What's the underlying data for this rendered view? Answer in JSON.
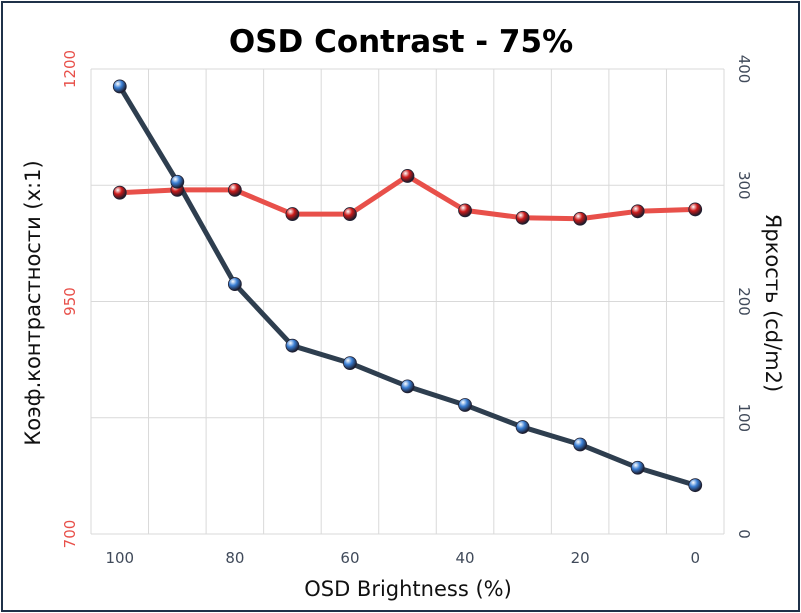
{
  "chart_data": {
    "type": "line",
    "title": "OSD Contrast - 75%",
    "xlabel": "OSD Brightness (%)",
    "ylabel_left": "Коэф.контрастности  (x:1)",
    "ylabel_right": "Яркость (cd/m2)",
    "x": [
      100,
      90,
      80,
      70,
      60,
      50,
      40,
      30,
      20,
      10,
      0
    ],
    "x_ticks": [
      "100",
      "80",
      "60",
      "40",
      "20",
      "0"
    ],
    "x_tick_values": [
      100,
      80,
      60,
      40,
      20,
      0
    ],
    "ylim_left": [
      700,
      1200
    ],
    "yticks_left": [
      "700",
      "950",
      "1200"
    ],
    "ytick_left_values": [
      700,
      950,
      1200
    ],
    "ylim_right": [
      0,
      400
    ],
    "yticks_right": [
      "0",
      "100",
      "200",
      "300",
      "400"
    ],
    "ytick_right_values": [
      0,
      100,
      200,
      300,
      400
    ],
    "grid": true,
    "series": [
      {
        "name": "Коэф.контрастности",
        "axis": "left",
        "color": "#e8504a",
        "marker_color": "#cc1a1a",
        "values": [
          1067,
          1070,
          1070,
          1044,
          1044,
          1085,
          1048,
          1040,
          1039,
          1047,
          1049
        ]
      },
      {
        "name": "Яркость",
        "axis": "right",
        "color": "#2e3e4f",
        "marker_color": "#3a7fd5",
        "values": [
          385,
          303,
          215,
          162,
          147,
          127,
          111,
          92,
          77,
          57,
          42
        ]
      }
    ]
  }
}
